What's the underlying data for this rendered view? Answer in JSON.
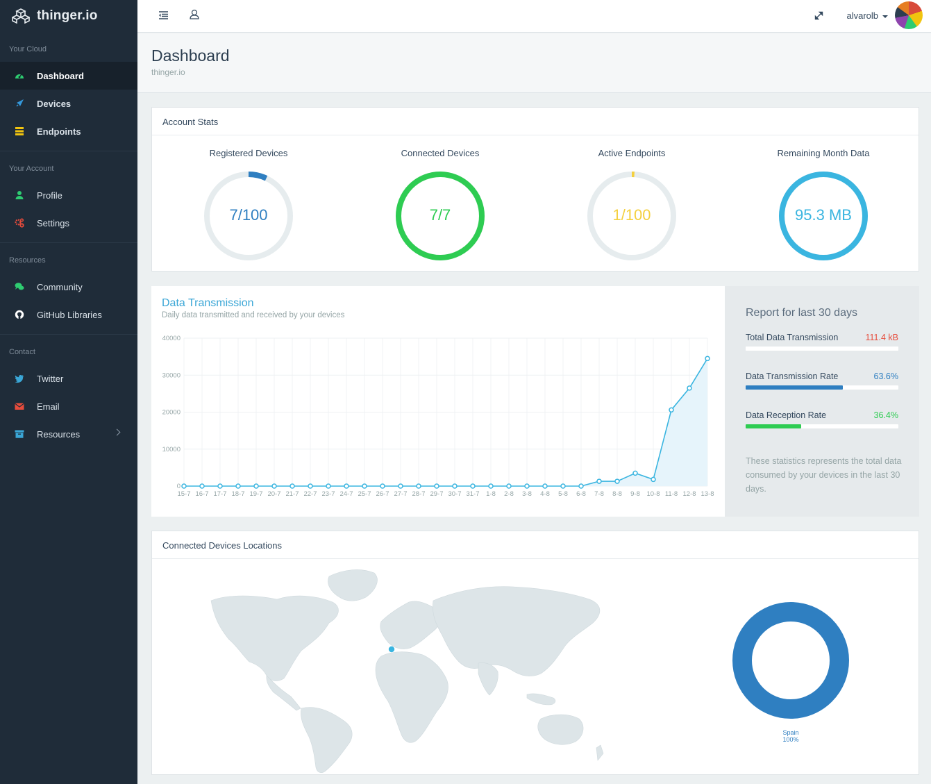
{
  "brand": {
    "name": "thinger.io"
  },
  "sidebar": {
    "sections": [
      {
        "title": "Your Cloud",
        "items": [
          {
            "label": "Dashboard",
            "icon": "dashboard-icon",
            "color": "#2ecc71"
          },
          {
            "label": "Devices",
            "icon": "rocket-icon",
            "color": "#3498db"
          },
          {
            "label": "Endpoints",
            "icon": "server-icon",
            "color": "#f1c40f"
          }
        ]
      },
      {
        "title": "Your Account",
        "items": [
          {
            "label": "Profile",
            "icon": "user-icon",
            "color": "#2ecc71"
          },
          {
            "label": "Settings",
            "icon": "gears-icon",
            "color": "#e74c3c"
          }
        ]
      },
      {
        "title": "Resources",
        "items": [
          {
            "label": "Community",
            "icon": "comments-icon",
            "color": "#2ecc71"
          },
          {
            "label": "GitHub Libraries",
            "icon": "github-icon",
            "color": "#ffffff"
          }
        ]
      },
      {
        "title": "Contact",
        "items": [
          {
            "label": "Twitter",
            "icon": "twitter-icon",
            "color": "#3aa6d6"
          },
          {
            "label": "Email",
            "icon": "envelope-icon",
            "color": "#e74c3c"
          },
          {
            "label": "Resources",
            "icon": "archive-icon",
            "color": "#3aa6d6"
          }
        ]
      }
    ]
  },
  "topbar": {
    "username": "alvarolb"
  },
  "page": {
    "title": "Dashboard",
    "subtitle": "thinger.io"
  },
  "account_stats": {
    "title": "Account Stats",
    "stats": [
      {
        "label": "Registered Devices",
        "value": "7/100",
        "fraction": 0.07,
        "color": "#2f7fc1"
      },
      {
        "label": "Connected Devices",
        "value": "7/7",
        "fraction": 1.0,
        "color": "#2ecc52"
      },
      {
        "label": "Active Endpoints",
        "value": "1/100",
        "fraction": 0.01,
        "color": "#f4d03f"
      },
      {
        "label": "Remaining Month Data",
        "value": "95.3 MB",
        "fraction": 1.0,
        "color": "#3ab5e0"
      }
    ]
  },
  "transmission": {
    "title": "Data Transmission",
    "subtitle": "Daily data transmitted and received by your devices"
  },
  "chart_data": {
    "type": "area",
    "title": "Data Transmission",
    "subtitle": "Daily data transmitted and received by your devices",
    "xlabel": "",
    "ylabel": "",
    "ylim": [
      0,
      40000
    ],
    "yticks": [
      0,
      10000,
      20000,
      30000,
      40000
    ],
    "grid": true,
    "categories": [
      "15-7",
      "16-7",
      "17-7",
      "18-7",
      "19-7",
      "20-7",
      "21-7",
      "22-7",
      "23-7",
      "24-7",
      "25-7",
      "26-7",
      "27-7",
      "28-7",
      "29-7",
      "30-7",
      "31-7",
      "1-8",
      "2-8",
      "3-8",
      "4-8",
      "5-8",
      "6-8",
      "7-8",
      "8-8",
      "9-8",
      "10-8",
      "11-8",
      "12-8",
      "13-8"
    ],
    "values": [
      0,
      0,
      0,
      0,
      0,
      0,
      0,
      0,
      0,
      0,
      0,
      0,
      0,
      0,
      0,
      0,
      0,
      0,
      0,
      0,
      0,
      0,
      0,
      1300,
      1300,
      3500,
      1800,
      20600,
      26500,
      34500
    ],
    "color": "#3ab5e0"
  },
  "report": {
    "title": "Report for last 30 days",
    "rows": [
      {
        "label": "Total Data Transmission",
        "value": "111.4 kB",
        "fraction": 1.0,
        "color": "#e74c3c",
        "bar_color": "#ffffff"
      },
      {
        "label": "Data Transmission Rate",
        "value": "63.6%",
        "fraction": 0.636,
        "color": "#2f7fc1",
        "bar_color": "#2f7fc1"
      },
      {
        "label": "Data Reception Rate",
        "value": "36.4%",
        "fraction": 0.364,
        "color": "#2ecc52",
        "bar_color": "#2ecc52"
      }
    ],
    "note": "These statistics represents the total data consumed by your devices in the last 30 days."
  },
  "locations": {
    "title": "Connected Devices Locations",
    "countries": [
      {
        "name": "Spain",
        "percent": "100%",
        "share": 1.0,
        "color": "#2f7fc1"
      }
    ]
  }
}
